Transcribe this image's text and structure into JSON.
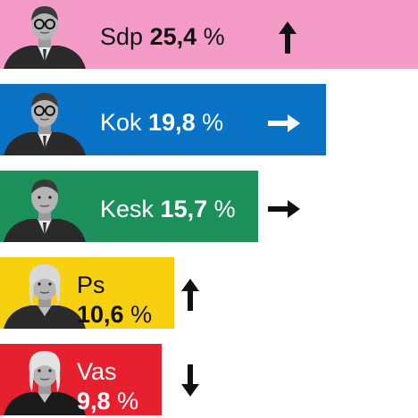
{
  "chart_data": {
    "type": "bar",
    "orientation": "horizontal",
    "categories": [
      "Sdp",
      "Kok",
      "Kesk",
      "Ps",
      "Vas"
    ],
    "values": [
      25.4,
      19.8,
      15.7,
      10.6,
      9.8
    ],
    "value_labels": [
      "25,4",
      "19,8",
      "15,7",
      "10,6",
      "9,8"
    ],
    "unit": "%",
    "trends": [
      "up",
      "flat",
      "flat",
      "up",
      "down"
    ],
    "trend_icons": [
      "arrow-up-icon",
      "arrow-right-icon",
      "arrow-right-icon",
      "arrow-up-icon",
      "arrow-down-icon"
    ],
    "colors": [
      "#f49bc8",
      "#0a72c4",
      "#1c8f5b",
      "#f7d10f",
      "#e6202f"
    ],
    "arrow_colors": [
      "#111111",
      "#ffffff",
      "#111111",
      "#111111",
      "#111111"
    ],
    "label_colors": [
      "#111111",
      "#ffffff",
      "#ffffff",
      "#111111",
      "#ffffff"
    ],
    "xlim": [
      0,
      25.4
    ],
    "grid": false,
    "legend": "none"
  }
}
